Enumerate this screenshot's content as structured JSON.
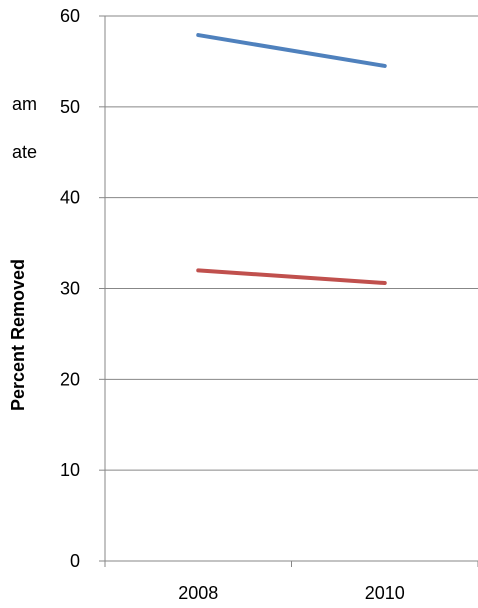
{
  "chart_data": {
    "type": "line",
    "title": "",
    "xlabel": "",
    "ylabel": "Percent Removed",
    "categories": [
      "2008",
      "2010"
    ],
    "ylim": [
      0,
      60
    ],
    "yticks": [
      "0",
      "10",
      "20",
      "30",
      "40",
      "50",
      "60"
    ],
    "grid": true,
    "series": [
      {
        "values": [
          57.9,
          54.5
        ],
        "color": "#4f81bd"
      },
      {
        "values": [
          32.0,
          30.6
        ],
        "color": "#c0504d"
      }
    ],
    "legend_fragments": [
      "am",
      "ate"
    ]
  }
}
